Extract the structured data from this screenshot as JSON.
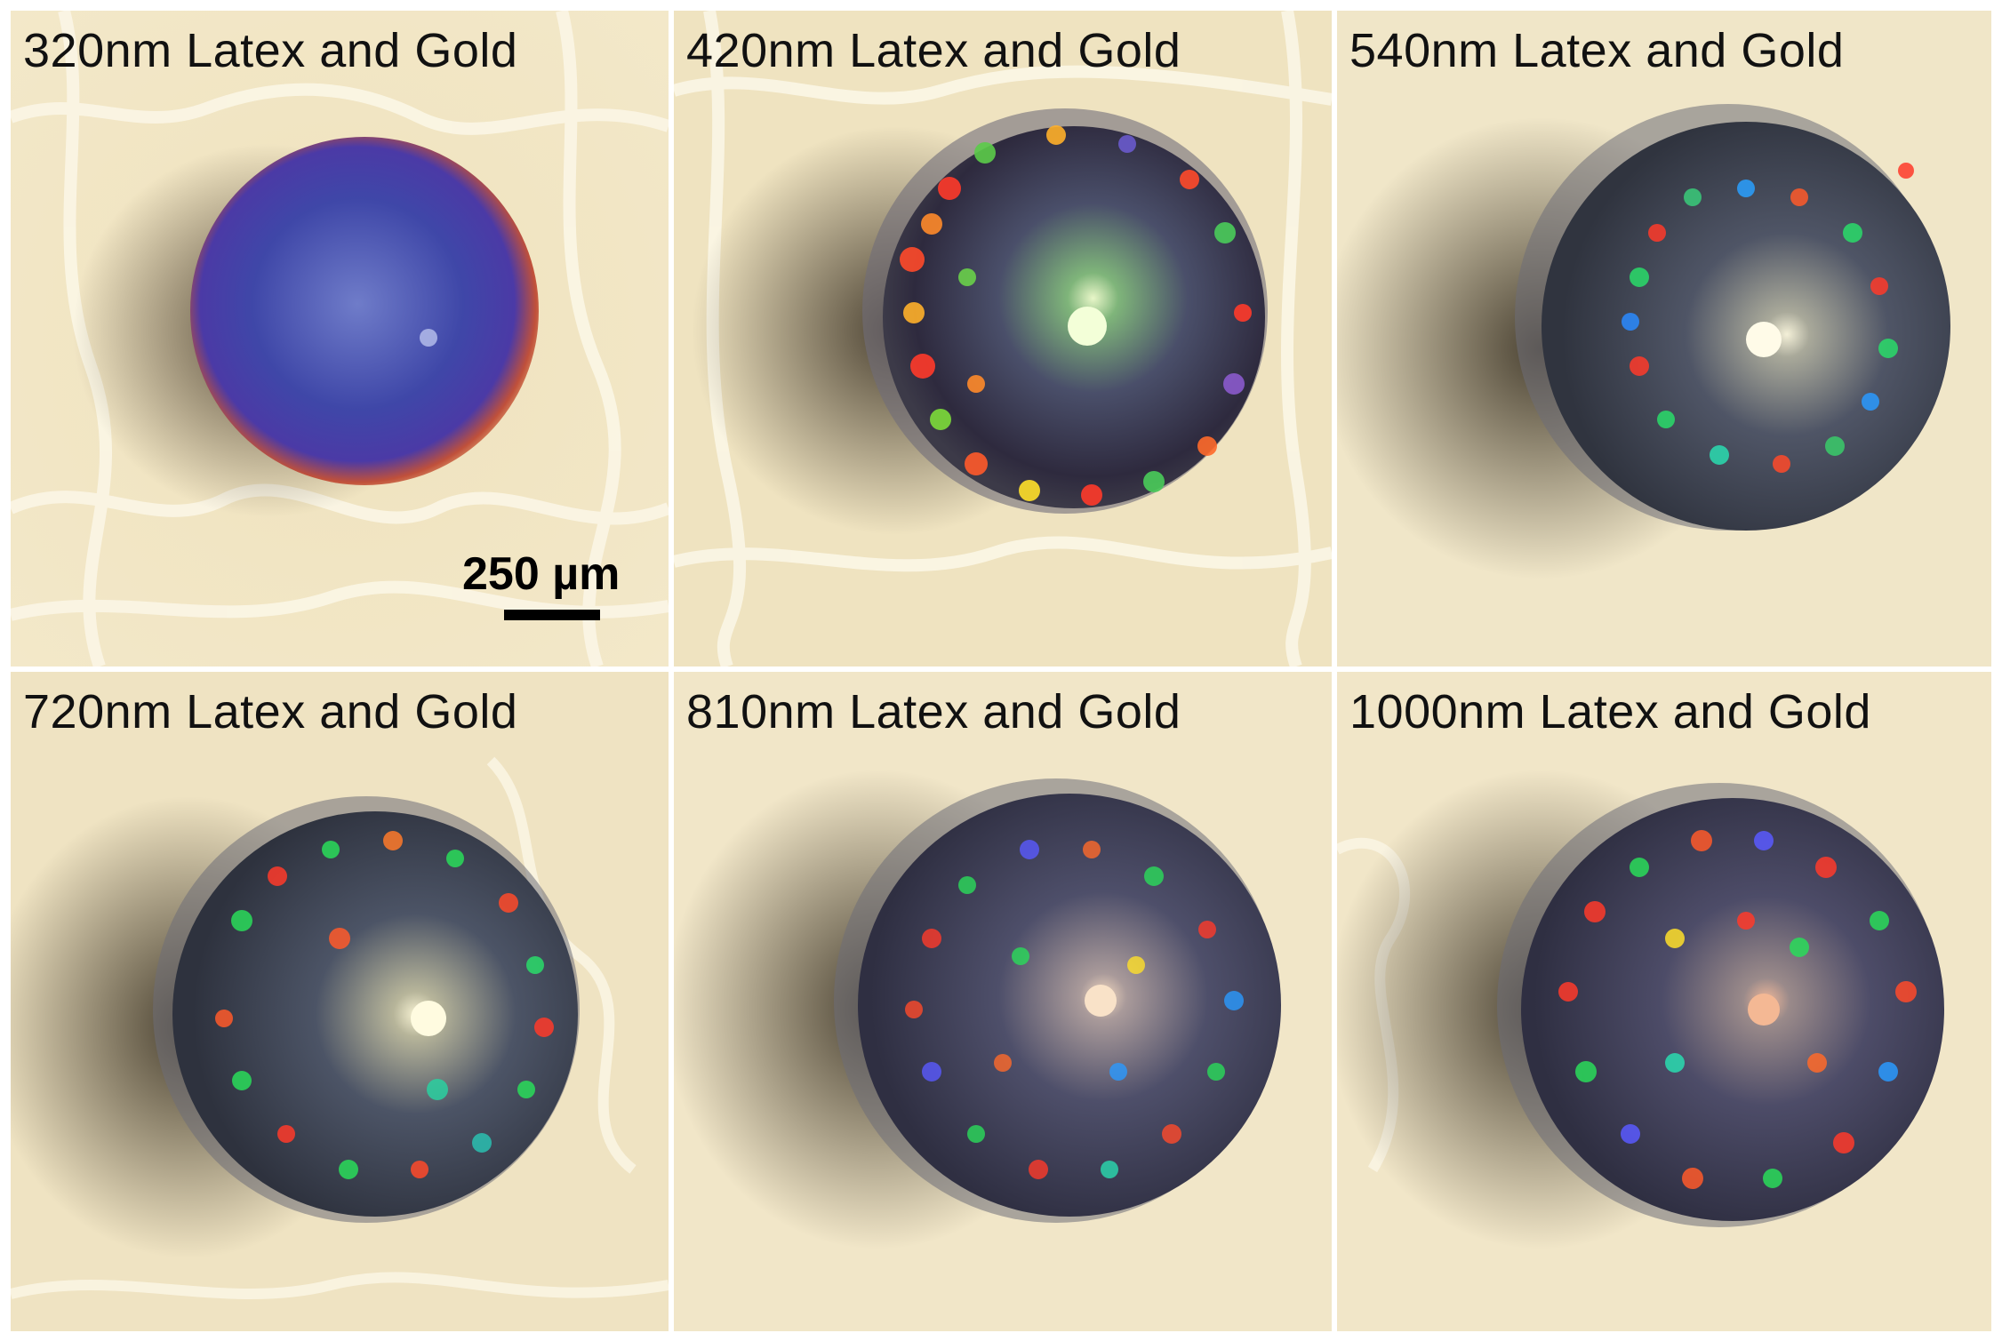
{
  "figure": {
    "panels": [
      {
        "label": "320nm Latex and Gold"
      },
      {
        "label": "420nm Latex and Gold"
      },
      {
        "label": "540nm Latex and Gold"
      },
      {
        "label": "720nm Latex and Gold"
      },
      {
        "label": "810nm Latex and Gold"
      },
      {
        "label": "1000nm Latex and Gold"
      }
    ],
    "scale_bar": {
      "label": "250 µm"
    }
  },
  "colors": {
    "background": "#efe3bf",
    "background_cells": "#f7f0da",
    "panel_divider": "#ffffff",
    "text": "#111111"
  }
}
